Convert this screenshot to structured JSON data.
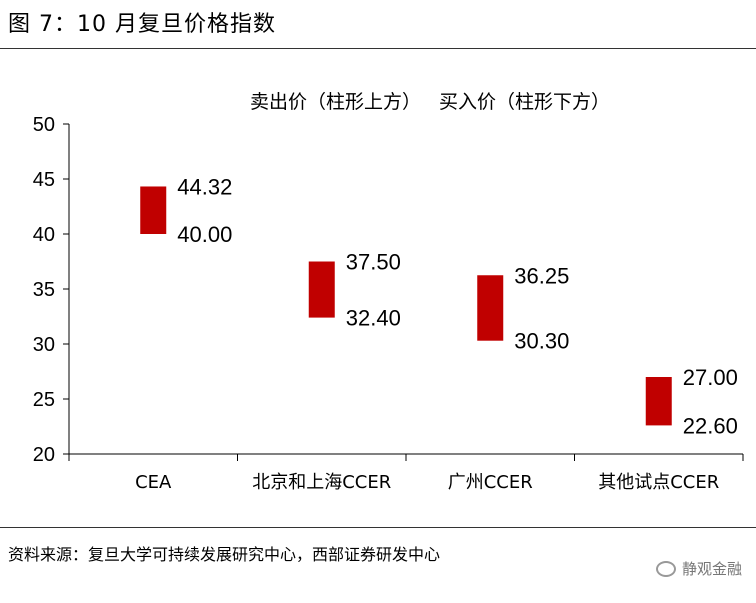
{
  "figure": {
    "title": "图 7：10 月复旦价格指数",
    "source": "资料来源：复旦大学可持续发展研究中心，西部证券研发中心",
    "watermark": "静观金融"
  },
  "chart_data": {
    "type": "bar",
    "subtitle": "卖出价（柱形上方）   买入价（柱形下方）",
    "categories": [
      "CEA",
      "北京和上海CCER",
      "广州CCER",
      "其他试点CCER"
    ],
    "series": [
      {
        "name": "卖出价",
        "values": [
          44.32,
          37.5,
          36.25,
          27.0
        ]
      },
      {
        "name": "买入价",
        "values": [
          40.0,
          32.4,
          30.3,
          22.6
        ]
      }
    ],
    "value_labels_high": [
      "44.32",
      "37.50",
      "36.25",
      "27.00"
    ],
    "value_labels_low": [
      "40.00",
      "32.40",
      "30.30",
      "22.60"
    ],
    "yticks": [
      "20",
      "25",
      "30",
      "35",
      "40",
      "45",
      "50"
    ],
    "ylim": [
      20,
      50
    ],
    "xlabel": "",
    "ylabel": "",
    "bar_color": "#c00000",
    "grid": false,
    "legend": "none"
  }
}
